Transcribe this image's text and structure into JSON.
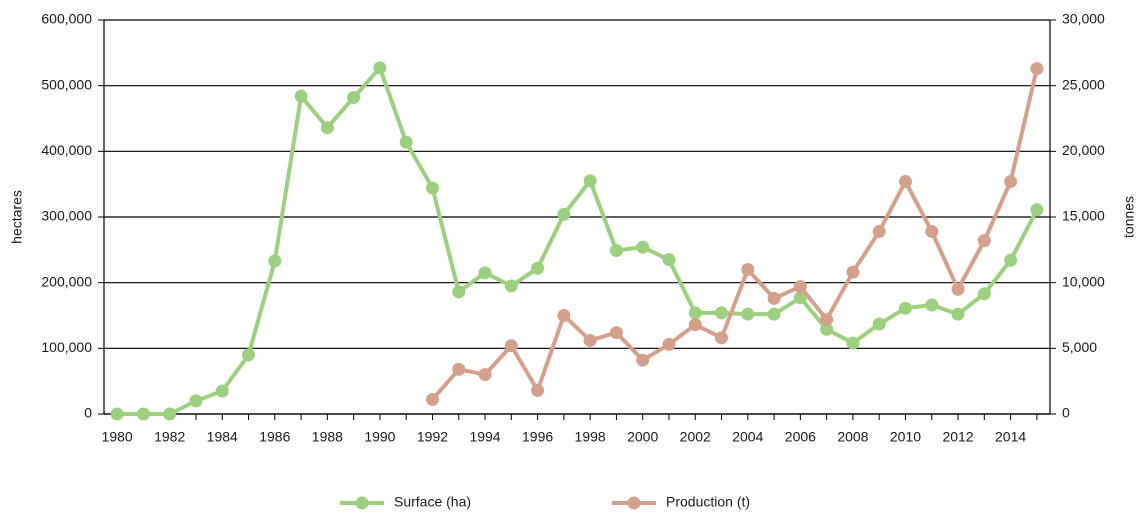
{
  "chart_data": {
    "type": "line",
    "categories": [
      "1980",
      null,
      "1982",
      null,
      "1984",
      null,
      "1986",
      null,
      "1988",
      null,
      "1990",
      null,
      "1992",
      null,
      "1994",
      null,
      "1996",
      null,
      "1998",
      null,
      "2000",
      null,
      "2002",
      null,
      "2004",
      null,
      "2006",
      null,
      "2008",
      null,
      "2010",
      null,
      "2012",
      null,
      "2014",
      null
    ],
    "y_label": "hectares",
    "y2_label": "tonnes",
    "ylim": [
      0,
      600000
    ],
    "yticks": [
      0,
      {
        "value": 100000,
        "label": "100,000"
      },
      {
        "value": 200000,
        "label": "200,000"
      },
      {
        "value": 300000,
        "label": "300,000"
      },
      {
        "value": 400000,
        "label": "400,000"
      },
      {
        "value": 500000,
        "label": "500,000"
      },
      {
        "value": 600000,
        "label": "600,000"
      }
    ],
    "y2lim": [
      0,
      30000
    ],
    "y2ticks": [
      0,
      {
        "value": 5000,
        "label": "5,000"
      },
      {
        "value": 10000,
        "label": "10,000"
      },
      {
        "value": 15000,
        "label": "15,000"
      },
      {
        "value": 20000,
        "label": "20,000"
      },
      {
        "value": 25000,
        "label": "25,000"
      },
      {
        "value": 30000,
        "label": "30,000"
      }
    ],
    "grid": true,
    "legend": "bottom",
    "series": [
      {
        "name": "Surface (ha)",
        "color": "#9dd07e",
        "axis": "y",
        "values": [
          0,
          0,
          0,
          20000,
          35000,
          90000,
          233000,
          484000,
          436000,
          482000,
          527000,
          414000,
          344000,
          186000,
          215000,
          195000,
          222000,
          304000,
          355000,
          249000,
          254000,
          235000,
          154000,
          154000,
          152000,
          152000,
          177000,
          129000,
          108000,
          137000,
          161000,
          166000,
          152000,
          183000,
          234000,
          311000
        ]
      },
      {
        "name": "Production (t)",
        "color": "#d4a08e",
        "axis": "y2",
        "values": [
          null,
          null,
          null,
          null,
          null,
          null,
          null,
          null,
          null,
          null,
          null,
          null,
          1100,
          3400,
          3000,
          5200,
          1800,
          7500,
          5600,
          6200,
          4100,
          5300,
          6800,
          5800,
          11000,
          8800,
          9700,
          7200,
          10800,
          13900,
          17700,
          13900,
          9500,
          13200,
          17700,
          26300
        ]
      }
    ]
  }
}
